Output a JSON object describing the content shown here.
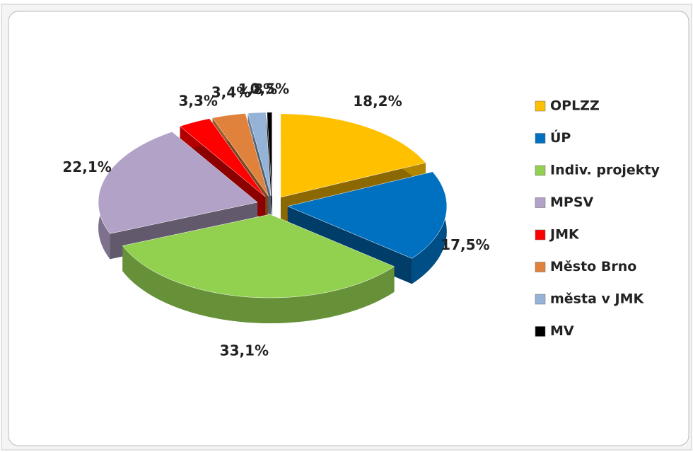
{
  "chart_data": {
    "type": "pie",
    "categories": [
      "OPLZZ",
      "ÚP",
      "Indiv. projekty",
      "MPSV",
      "JMK",
      "Město Brno",
      "města v JMK",
      "MV"
    ],
    "values": [
      18.2,
      17.5,
      33.1,
      22.1,
      3.3,
      3.4,
      1.8,
      0.5
    ],
    "value_labels": [
      "18,2%",
      "17,5%",
      "33,1%",
      "22,1%",
      "3,3%",
      "3,4%",
      "1,8%",
      "0,5%"
    ],
    "colors": [
      "#ffc000",
      "#0070c0",
      "#92d050",
      "#b3a2c7",
      "#ff0000",
      "#e0823c",
      "#95b3d7",
      "#000000"
    ],
    "legend": "right"
  }
}
